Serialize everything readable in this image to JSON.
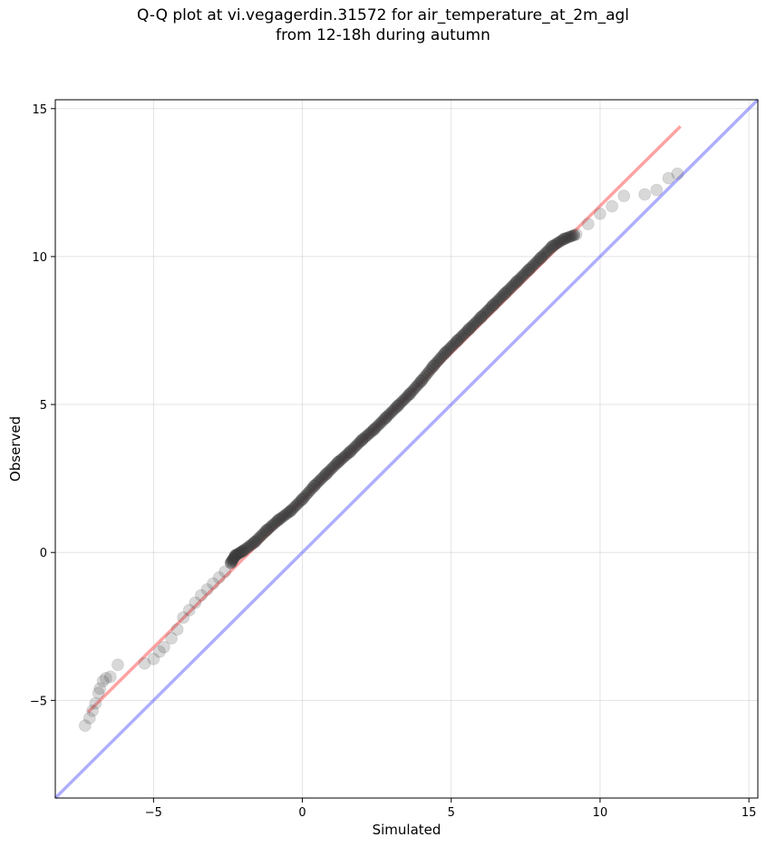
{
  "chart_data": {
    "type": "scatter",
    "title": "Q-Q plot at vi.vegagerdin.31572 for air_temperature_at_2m_agl\nfrom 12-18h during autumn",
    "xlabel": "Simulated",
    "ylabel": "Observed",
    "xlim": [
      -8.3,
      15.3
    ],
    "ylim": [
      -8.3,
      15.3
    ],
    "xticks": [
      -5,
      0,
      5,
      10,
      15
    ],
    "yticks": [
      -5,
      0,
      5,
      10,
      15
    ],
    "xtick_labels": [
      "−5",
      "0",
      "5",
      "10",
      "15"
    ],
    "ytick_labels": [
      "−5",
      "0",
      "5",
      "10",
      "15"
    ],
    "grid": true,
    "series": [
      {
        "role": "quantiles",
        "color": "#808080",
        "x": [
          -7.3,
          -7.15,
          -7.05,
          -6.95,
          -6.85,
          -6.8,
          -6.7,
          -6.6,
          -6.45,
          -6.2,
          -5.3,
          -5.0,
          -4.8,
          -4.65,
          -4.4,
          -4.2,
          -4.0,
          -3.8,
          -3.6,
          -3.4,
          -3.2,
          -3.0,
          -2.8,
          -2.6,
          -2.4,
          -2.25,
          -2.0,
          -1.6,
          -1.2,
          -0.8,
          -0.4,
          0.0,
          0.4,
          0.8,
          1.2,
          1.6,
          2.0,
          2.4,
          2.8,
          3.2,
          3.6,
          4.0,
          4.4,
          4.8,
          5.2,
          5.6,
          6.0,
          6.4,
          6.8,
          7.2,
          7.6,
          8.0,
          8.4,
          8.8,
          9.2,
          9.6,
          10.0,
          10.4,
          10.8,
          11.5,
          11.9,
          12.3,
          12.6
        ],
        "y": [
          -5.85,
          -5.6,
          -5.35,
          -5.1,
          -4.75,
          -4.6,
          -4.35,
          -4.25,
          -4.2,
          -3.8,
          -3.75,
          -3.6,
          -3.35,
          -3.2,
          -2.9,
          -2.6,
          -2.2,
          -1.95,
          -1.7,
          -1.45,
          -1.25,
          -1.05,
          -0.85,
          -0.65,
          -0.35,
          -0.1,
          0.05,
          0.35,
          0.75,
          1.1,
          1.4,
          1.8,
          2.25,
          2.65,
          3.05,
          3.4,
          3.8,
          4.15,
          4.55,
          4.95,
          5.35,
          5.8,
          6.3,
          6.75,
          7.15,
          7.55,
          7.95,
          8.35,
          8.75,
          9.15,
          9.55,
          9.95,
          10.35,
          10.6,
          10.75,
          11.1,
          11.45,
          11.7,
          12.05,
          12.1,
          12.25,
          12.65,
          12.8
        ]
      },
      {
        "role": "fit-line",
        "color": "#ff5555",
        "x": [
          -7.2,
          12.7
        ],
        "y": [
          -5.4,
          14.4
        ]
      },
      {
        "role": "1:1 line",
        "color": "#6b6bff",
        "x": [
          -8.3,
          15.3
        ],
        "y": [
          -8.3,
          15.3
        ]
      }
    ]
  }
}
